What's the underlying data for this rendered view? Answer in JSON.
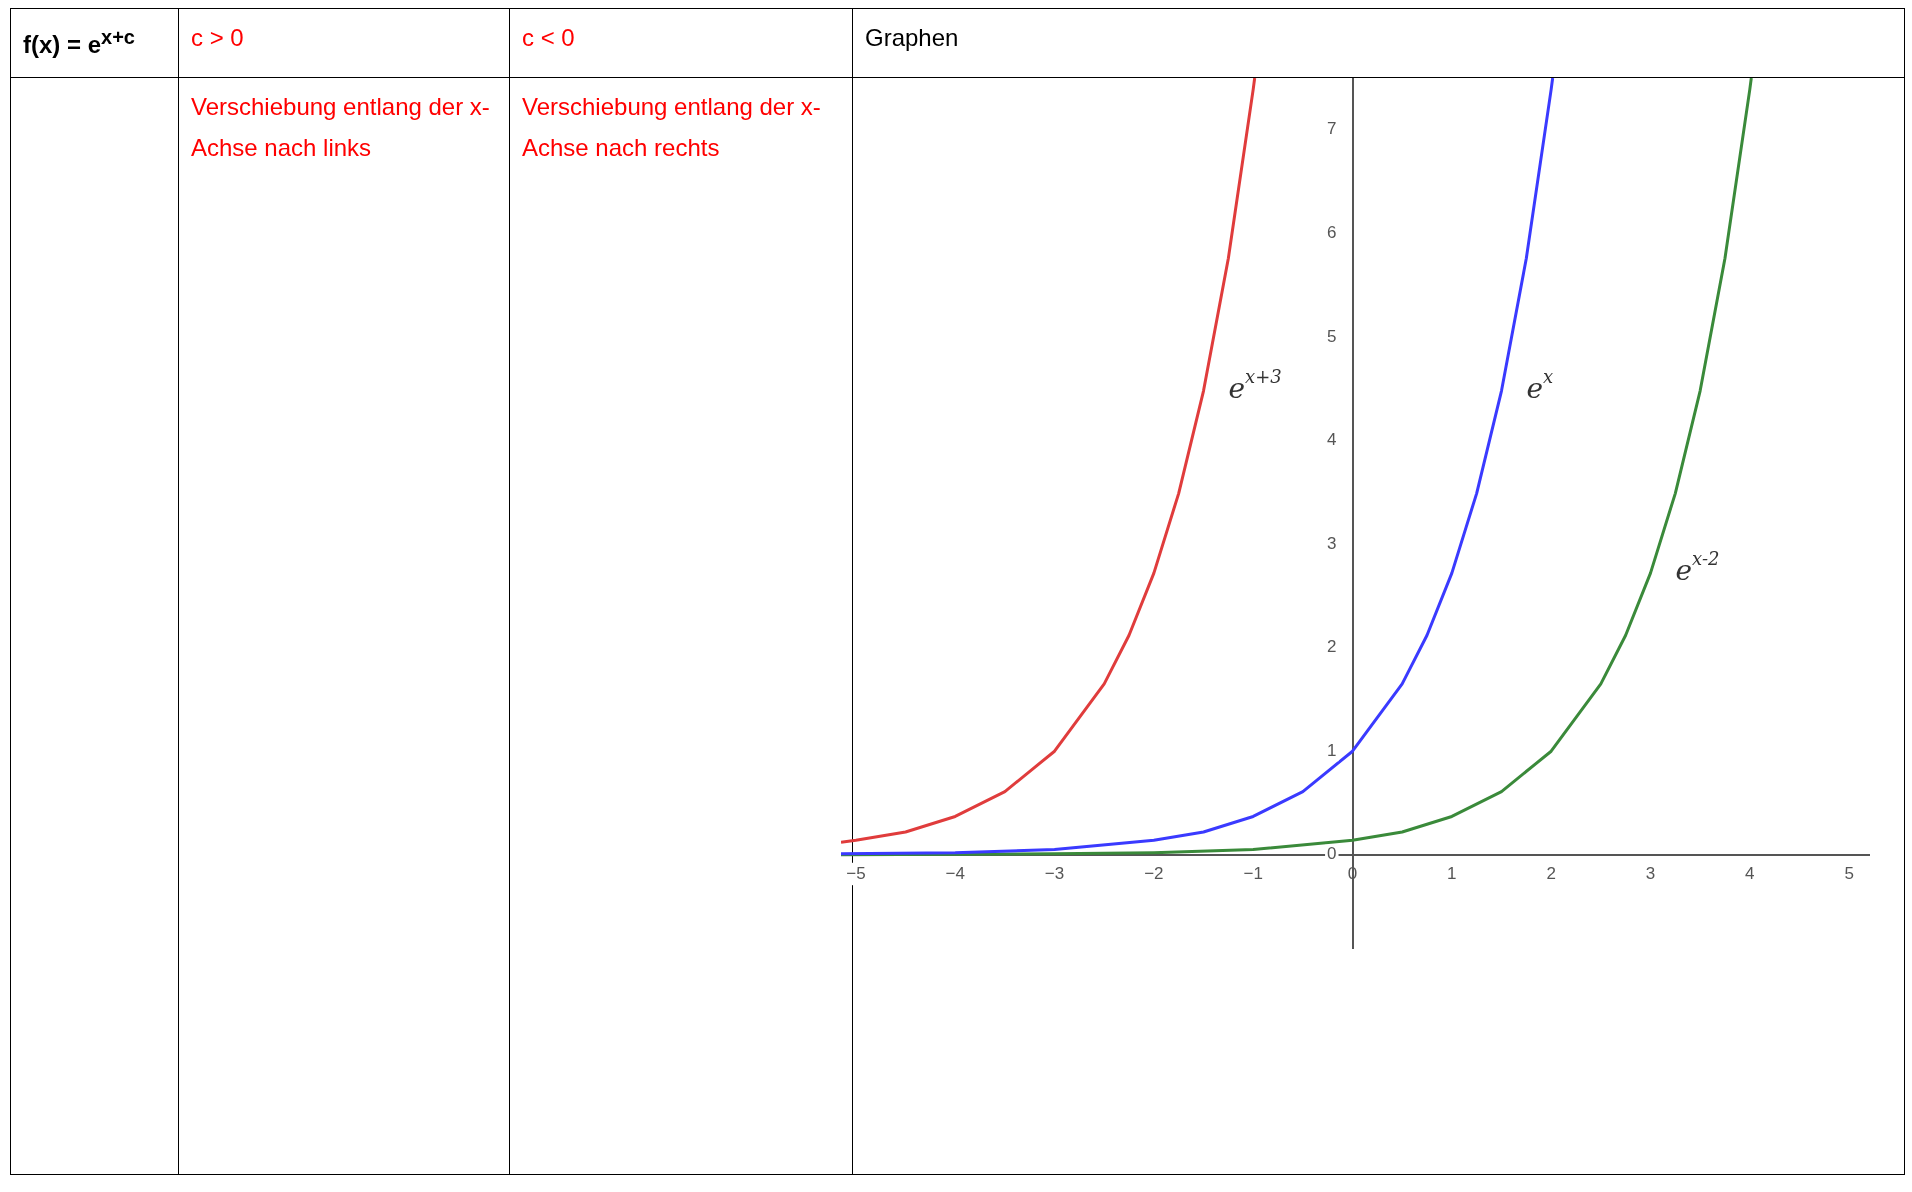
{
  "chart_data": {
    "type": "line",
    "title": "Graphen",
    "annotations": [
      "f(x) = e$^{x+c}$",
      "c > 0",
      "c < 0",
      "Verschiebung entlang der x-Achse nach  links",
      "Verschiebung entlang der x-Achse nach rechts"
    ],
    "series": [
      {
        "name": "e$^{x+3}$",
        "color": "#e03c3c",
        "x": [
          -5.15,
          -5,
          -4.5,
          -4,
          -3.5,
          -3,
          -2.5,
          -2.25,
          -2,
          -1.75,
          -1.5,
          -1.25,
          -1,
          -0.985
        ],
        "values": [
          0.12,
          0.14,
          0.22,
          0.37,
          0.61,
          1,
          1.65,
          2.12,
          2.72,
          3.49,
          4.48,
          5.76,
          7.39,
          7.5
        ]
      },
      {
        "name": "e$^{x}$",
        "color": "#3a3aff",
        "x": [
          -5.15,
          -4,
          -3,
          -2,
          -1.5,
          -1,
          -0.5,
          0,
          0.5,
          0.75,
          1,
          1.25,
          1.5,
          1.75,
          2,
          2.015
        ],
        "values": [
          0.01,
          0.02,
          0.05,
          0.14,
          0.22,
          0.37,
          0.61,
          1,
          1.65,
          2.12,
          2.72,
          3.49,
          4.48,
          5.76,
          7.39,
          7.5
        ]
      },
      {
        "name": "e$^{x-2}$",
        "color": "#3a8a3a",
        "x": [
          -5.15,
          -3,
          -2,
          -1,
          0,
          0.5,
          1,
          1.5,
          2,
          2.5,
          2.75,
          3,
          3.25,
          3.5,
          3.75,
          4,
          4.015
        ],
        "values": [
          0,
          0.01,
          0.02,
          0.05,
          0.14,
          0.22,
          0.37,
          0.61,
          1,
          1.65,
          2.12,
          2.72,
          3.49,
          4.48,
          5.76,
          7.39,
          7.5
        ]
      }
    ],
    "xlim": [
      -5.15,
      5.2
    ],
    "ylim": [
      -0.9,
      7.5
    ],
    "xticks": [
      {
        "value": -5,
        "label": "−5"
      },
      {
        "value": -4,
        "label": "−4"
      },
      {
        "value": -3,
        "label": "−3"
      },
      {
        "value": -2,
        "label": "−2"
      },
      {
        "value": -1,
        "label": "−1"
      },
      0,
      1,
      2,
      3,
      4,
      5
    ],
    "yticks": [
      0,
      1,
      2,
      3,
      4,
      5,
      6,
      7
    ],
    "grid": false,
    "legend": false,
    "marker": "none",
    "line_style": "solid"
  }
}
